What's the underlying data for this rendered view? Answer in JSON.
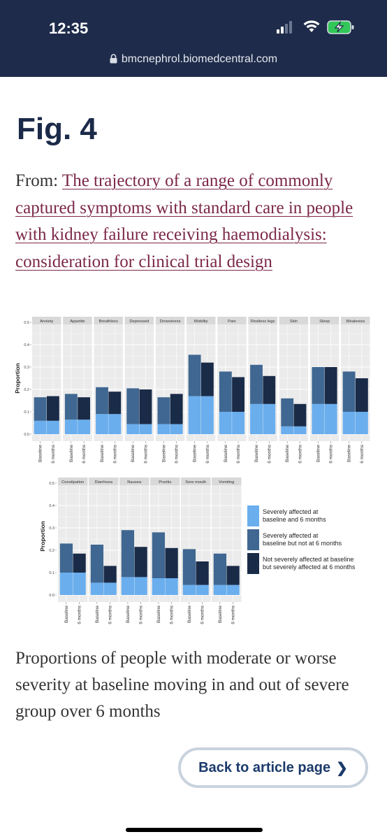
{
  "status_bar": {
    "time": "12:35",
    "url": "bmcnephrol.biomedcentral.com"
  },
  "figure_title": "Fig. 4",
  "from_prefix": "From: ",
  "from_link": "The trajectory of a range of commonly captured symptoms with standard care in people with kidney failure receiving haemodialysis: consideration for clinical trial design",
  "caption": "Proportions of people with moderate or worse severity at baseline moving in and out of severe group over 6 months",
  "back_button": "Back to article page",
  "colors": {
    "light": "#6aaeee",
    "mid": "#3f6791",
    "dark": "#1a2b48",
    "panel_bg": "#ebebeb",
    "strip_bg": "#d9d9d9"
  },
  "chart_data": [
    {
      "type": "bar",
      "stacked": true,
      "ylabel": "Proportion",
      "ylim": [
        0,
        0.5
      ],
      "yticks": [
        "0.0",
        "0.1",
        "0.2",
        "0.3",
        "0.4",
        "0.5"
      ],
      "x_categories": [
        "Baseline",
        "6 months"
      ],
      "panels": [
        {
          "name": "Anxiety",
          "baseline": {
            "both": 0.06,
            "other": 0.105
          },
          "six_months": {
            "both": 0.06,
            "other": 0.11
          }
        },
        {
          "name": "Appetite",
          "baseline": {
            "both": 0.065,
            "other": 0.115
          },
          "six_months": {
            "both": 0.065,
            "other": 0.1
          }
        },
        {
          "name": "Breathless",
          "baseline": {
            "both": 0.09,
            "other": 0.12
          },
          "six_months": {
            "both": 0.09,
            "other": 0.1
          }
        },
        {
          "name": "Depressed",
          "baseline": {
            "both": 0.045,
            "other": 0.16
          },
          "six_months": {
            "both": 0.045,
            "other": 0.155
          }
        },
        {
          "name": "Drowsiness",
          "baseline": {
            "both": 0.045,
            "other": 0.12
          },
          "six_months": {
            "both": 0.045,
            "other": 0.135
          }
        },
        {
          "name": "Mobility",
          "baseline": {
            "both": 0.17,
            "other": 0.185
          },
          "six_months": {
            "both": 0.17,
            "other": 0.15
          }
        },
        {
          "name": "Pain",
          "baseline": {
            "both": 0.1,
            "other": 0.18
          },
          "six_months": {
            "both": 0.1,
            "other": 0.155
          }
        },
        {
          "name": "Restless legs",
          "baseline": {
            "both": 0.135,
            "other": 0.175
          },
          "six_months": {
            "both": 0.135,
            "other": 0.125
          }
        },
        {
          "name": "Skin",
          "baseline": {
            "both": 0.035,
            "other": 0.125
          },
          "six_months": {
            "both": 0.035,
            "other": 0.1
          }
        },
        {
          "name": "Sleep",
          "baseline": {
            "both": 0.135,
            "other": 0.165
          },
          "six_months": {
            "both": 0.135,
            "other": 0.165
          }
        },
        {
          "name": "Weakness",
          "baseline": {
            "both": 0.1,
            "other": 0.18
          },
          "six_months": {
            "both": 0.1,
            "other": 0.15
          }
        }
      ]
    },
    {
      "type": "bar",
      "stacked": true,
      "ylabel": "Proportion",
      "ylim": [
        0,
        0.5
      ],
      "yticks": [
        "0.0",
        "0.1",
        "0.2",
        "0.3",
        "0.4",
        "0.5"
      ],
      "x_categories": [
        "Baseline",
        "6 months"
      ],
      "panels": [
        {
          "name": "Constipation",
          "baseline": {
            "both": 0.1,
            "other": 0.13
          },
          "six_months": {
            "both": 0.1,
            "other": 0.085
          }
        },
        {
          "name": "Diarrhoea",
          "baseline": {
            "both": 0.055,
            "other": 0.17
          },
          "six_months": {
            "both": 0.055,
            "other": 0.075
          }
        },
        {
          "name": "Nausea",
          "baseline": {
            "both": 0.08,
            "other": 0.21
          },
          "six_months": {
            "both": 0.08,
            "other": 0.135
          }
        },
        {
          "name": "Pruritis",
          "baseline": {
            "both": 0.075,
            "other": 0.205
          },
          "six_months": {
            "both": 0.075,
            "other": 0.135
          }
        },
        {
          "name": "Sore mouth",
          "baseline": {
            "both": 0.045,
            "other": 0.16
          },
          "six_months": {
            "both": 0.045,
            "other": 0.105
          }
        },
        {
          "name": "Vomiting",
          "baseline": {
            "both": 0.045,
            "other": 0.14
          },
          "six_months": {
            "both": 0.045,
            "other": 0.085
          }
        }
      ],
      "legend": [
        "Severely affected at baseline and 6 months",
        "Severely affected at baseline but not at 6 months",
        "Not severely affected at baseline but severely affected at 6 months"
      ]
    }
  ]
}
